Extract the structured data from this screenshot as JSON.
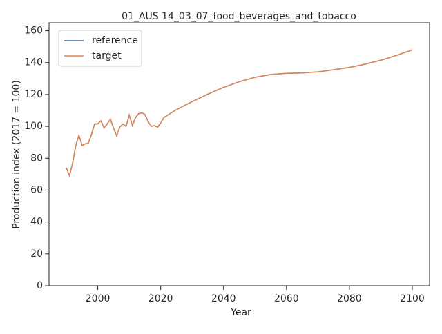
{
  "chart_data": {
    "type": "line",
    "title": "01_AUS 14_03_07_food_beverages_and_tobacco",
    "x_label": "Year",
    "y_label": "Production index (2017 = 100)",
    "x": [
      1990,
      1991,
      1992,
      1993,
      1994,
      1995,
      1996,
      1997,
      1998,
      1999,
      2000,
      2001,
      2002,
      2003,
      2004,
      2005,
      2006,
      2007,
      2008,
      2009,
      2010,
      2011,
      2012,
      2013,
      2014,
      2015,
      2016,
      2017,
      2018,
      2019,
      2020,
      2021,
      2025,
      2030,
      2035,
      2040,
      2045,
      2050,
      2055,
      2060,
      2065,
      2070,
      2075,
      2080,
      2085,
      2090,
      2095,
      2100
    ],
    "series": [
      {
        "name": "reference",
        "color": "#4c72b0",
        "values": [
          74,
          69,
          77,
          88,
          94.5,
          88,
          89,
          89.5,
          95,
          101.5,
          101.5,
          103.5,
          99,
          101.5,
          104.5,
          99,
          94,
          99.5,
          101.5,
          100,
          107,
          100.5,
          105.5,
          108,
          108.5,
          107.5,
          103,
          100,
          100.5,
          99.5,
          102,
          105.5,
          110.5,
          115.5,
          120.2,
          124.5,
          128,
          130.8,
          132.5,
          133.3,
          133.5,
          134.2,
          135.5,
          137,
          139,
          141.5,
          144.5,
          148
        ]
      },
      {
        "name": "target",
        "color": "#dd8452",
        "values": [
          74,
          69,
          77,
          88,
          94.5,
          88,
          89,
          89.5,
          95,
          101.5,
          101.5,
          103.5,
          99,
          101.5,
          104.5,
          99,
          94,
          99.5,
          101.5,
          100,
          107,
          100.5,
          105.5,
          108,
          108.5,
          107.5,
          103,
          100,
          100.5,
          99.5,
          102,
          105.5,
          110.5,
          115.5,
          120.2,
          124.5,
          128,
          130.8,
          132.5,
          133.3,
          133.5,
          134.2,
          135.5,
          137,
          139,
          141.5,
          144.5,
          148
        ]
      }
    ],
    "xlim": [
      1984.5,
      2105.5
    ],
    "xticks": [
      2000,
      2020,
      2040,
      2060,
      2080,
      2100
    ],
    "ylim": [
      0,
      165
    ],
    "yticks": [
      0,
      20,
      40,
      60,
      80,
      100,
      120,
      140,
      160
    ],
    "legend": "upper left"
  }
}
